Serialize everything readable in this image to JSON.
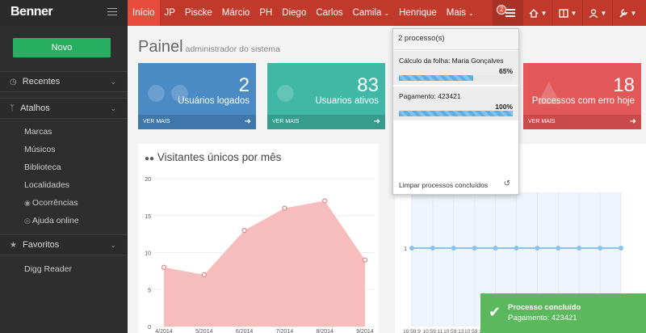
{
  "brand": "Benner",
  "tabs": [
    {
      "label": "Início",
      "active": true,
      "dropdown": false
    },
    {
      "label": "JP",
      "active": false,
      "dropdown": false
    },
    {
      "label": "Piscke",
      "active": false,
      "dropdown": false
    },
    {
      "label": "Márcio",
      "active": false,
      "dropdown": false
    },
    {
      "label": "PH",
      "active": false,
      "dropdown": false
    },
    {
      "label": "Diego",
      "active": false,
      "dropdown": false
    },
    {
      "label": "Carlos",
      "active": false,
      "dropdown": false
    },
    {
      "label": "Camila",
      "active": false,
      "dropdown": true
    },
    {
      "label": "Henrique",
      "active": false,
      "dropdown": false
    },
    {
      "label": "Mais",
      "active": false,
      "dropdown": true
    }
  ],
  "header_icons": {
    "processes_badge": "2",
    "icons": [
      "processes-icon",
      "home-icon",
      "book-icon",
      "user-icon",
      "tools-icon"
    ]
  },
  "sidebar": {
    "new_button": "Novo",
    "sections": [
      {
        "label": "Recentes",
        "icon": "clock-icon"
      },
      {
        "label": "Atalhos",
        "icon": "branch-icon"
      },
      {
        "label": "Favoritos",
        "icon": "star-icon"
      }
    ],
    "shortcuts": [
      {
        "label": "Marcas",
        "icon": ""
      },
      {
        "label": "Músicos",
        "icon": ""
      },
      {
        "label": "Biblioteca",
        "icon": ""
      },
      {
        "label": "Localidades",
        "icon": ""
      },
      {
        "label": "Ocorrências",
        "icon": "eye-icon"
      },
      {
        "label": "Ajuda online",
        "icon": "globe-icon"
      }
    ],
    "favorites": [
      {
        "label": "Digg Reader"
      }
    ]
  },
  "page": {
    "title": "Painel",
    "subtitle": "administrador do sistema"
  },
  "stats": [
    {
      "value": "2",
      "label": "Usuários logados",
      "footer": "VER MAIS",
      "color": "#4a8ac5",
      "footer_color": "#3f77ab",
      "icon": "users-icon"
    },
    {
      "value": "83",
      "label": "Usuarios ativos",
      "footer": "VER MAIS",
      "color": "#41b7a7",
      "footer_color": "#379c8e",
      "icon": "globe-icon"
    },
    {
      "value": "18",
      "label": "Processos com erro hoje",
      "footer": "VER MAIS",
      "color": "#e25858",
      "footer_color": "#c94b4b",
      "icon": "warning-icon"
    }
  ],
  "chart_data": [
    {
      "type": "area",
      "title": "Visitantes únicos por mês",
      "categories": [
        "4/2014",
        "5/2014",
        "6/2014",
        "7/2014",
        "8/2014",
        "9/2014"
      ],
      "values": [
        8,
        7,
        13,
        16,
        17,
        9
      ],
      "ylim": [
        0,
        20
      ],
      "yticks": [
        0,
        5,
        10,
        15,
        20
      ],
      "color": "#f7bcbc",
      "line_color": "#e88a8a",
      "grid": true
    },
    {
      "type": "line",
      "title": "",
      "x": [
        "10:59:9",
        "10:59:11",
        "10:59:13",
        "10:59:15",
        "10:59:17",
        "",
        "",
        "",
        "",
        "",
        ""
      ],
      "values": [
        1,
        1,
        1,
        1,
        1,
        1,
        1,
        1,
        1,
        1,
        1
      ],
      "yticks": [
        1
      ],
      "color": "#8ec3e6",
      "grid": true
    }
  ],
  "processes": {
    "header": "2 processo(s)",
    "items": [
      {
        "name": "Cálculo da folha: Maria Gonçalves",
        "percent_label": "65%",
        "percent": 65
      },
      {
        "name": "Pagamento: 423421",
        "percent_label": "100%",
        "percent": 100
      }
    ],
    "clear_label": "Limpar processos concluídos"
  },
  "toast": {
    "title": "Processo concluído",
    "message": "Pagamento: 423421"
  }
}
